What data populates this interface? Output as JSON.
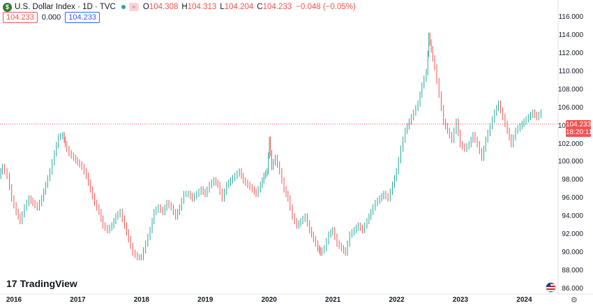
{
  "header": {
    "symbol_badge": "$",
    "title": "U.S. Dollar Index · 1D · TVC",
    "flag_badge": "≈",
    "ohlc": [
      {
        "label": "O",
        "value": "104.308"
      },
      {
        "label": "H",
        "value": "104.313"
      },
      {
        "label": "L",
        "value": "104.204"
      },
      {
        "label": "C",
        "value": "104.233"
      }
    ],
    "change": "−0.048 (−0.05%)"
  },
  "indicator": {
    "value1": "104.233",
    "value2": "0.000",
    "value3": "104.233"
  },
  "last_price": {
    "value": "104.233",
    "countdown": "18:20:11"
  },
  "branding": {
    "logo_mark": "17",
    "logo_text": "TradingView"
  },
  "colors": {
    "up": "#26a69a",
    "down": "#ef5350",
    "accent": "#2962ff"
  },
  "chart_data": {
    "type": "line",
    "title": "U.S. Dollar Index · 1D · TVC",
    "xlabel": "",
    "ylabel": "",
    "grid": false,
    "xlim": [
      2016.0,
      2024.75
    ],
    "ylim": [
      85.5,
      117.5
    ],
    "x_ticks": [
      "2016",
      "2017",
      "2018",
      "2019",
      "2020",
      "2021",
      "2022",
      "2023",
      "2024"
    ],
    "y_ticks": [
      "86.000",
      "88.000",
      "90.000",
      "92.000",
      "94.000",
      "96.000",
      "98.000",
      "100.000",
      "102.000",
      "104.000",
      "106.000",
      "108.000",
      "110.000",
      "112.000",
      "114.000",
      "116.000"
    ],
    "last_value": 104.233,
    "series": [
      {
        "x": [
          2016.0,
          2016.05,
          2016.13,
          2016.2,
          2016.27,
          2016.33,
          2016.4,
          2016.47,
          2016.53,
          2016.6,
          2016.67,
          2016.73,
          2016.8,
          2016.87,
          2016.93,
          2017.0,
          2017.03,
          2017.1,
          2017.17,
          2017.23,
          2017.3,
          2017.37,
          2017.43,
          2017.5,
          2017.57,
          2017.63,
          2017.7,
          2017.77,
          2017.83,
          2017.9,
          2017.97,
          2018.03,
          2018.1,
          2018.17,
          2018.23,
          2018.3,
          2018.37,
          2018.43,
          2018.5,
          2018.57,
          2018.63,
          2018.7,
          2018.77,
          2018.83,
          2018.9,
          2018.97,
          2019.03,
          2019.1,
          2019.17,
          2019.23,
          2019.3,
          2019.37,
          2019.43,
          2019.5,
          2019.57,
          2019.63,
          2019.7,
          2019.77,
          2019.83,
          2019.9,
          2019.97,
          2020.03,
          2020.1,
          2020.15,
          2020.2,
          2020.23,
          2020.27,
          2020.33,
          2020.4,
          2020.47,
          2020.53,
          2020.6,
          2020.67,
          2020.73,
          2020.8,
          2020.87,
          2020.93,
          2021.0,
          2021.03,
          2021.1,
          2021.17,
          2021.23,
          2021.3,
          2021.37,
          2021.43,
          2021.5,
          2021.57,
          2021.63,
          2021.7,
          2021.77,
          2021.83,
          2021.9,
          2021.97,
          2022.03,
          2022.1,
          2022.17,
          2022.23,
          2022.3,
          2022.37,
          2022.43,
          2022.5,
          2022.57,
          2022.63,
          2022.7,
          2022.73,
          2022.77,
          2022.83,
          2022.9,
          2022.97,
          2023.03,
          2023.1,
          2023.17,
          2023.23,
          2023.3,
          2023.37,
          2023.43,
          2023.5,
          2023.57,
          2023.63,
          2023.7,
          2023.77,
          2023.83,
          2023.9,
          2023.97,
          2024.03,
          2024.1,
          2024.17,
          2024.23,
          2024.3,
          2024.37,
          2024.43,
          2024.5
        ],
        "y": [
          98.5,
          99.5,
          98.5,
          96.0,
          94.5,
          93.5,
          95.0,
          96.0,
          95.5,
          95.0,
          96.0,
          97.5,
          99.0,
          101.0,
          102.8,
          103.0,
          102.0,
          101.0,
          100.5,
          100.0,
          99.5,
          98.5,
          97.0,
          95.5,
          94.5,
          93.0,
          92.5,
          93.0,
          94.0,
          94.5,
          93.0,
          91.5,
          90.0,
          89.5,
          89.5,
          91.0,
          92.5,
          94.5,
          95.0,
          94.5,
          95.5,
          95.0,
          94.0,
          95.0,
          96.5,
          96.5,
          96.0,
          96.5,
          97.0,
          96.5,
          97.5,
          98.0,
          97.5,
          96.0,
          97.5,
          98.0,
          98.5,
          99.0,
          98.0,
          97.5,
          97.0,
          96.5,
          97.5,
          98.5,
          99.0,
          102.5,
          99.5,
          100.5,
          99.0,
          97.0,
          96.0,
          94.0,
          93.0,
          93.5,
          94.0,
          92.5,
          91.5,
          90.5,
          90.0,
          90.5,
          92.0,
          92.5,
          91.0,
          90.5,
          90.0,
          92.0,
          92.5,
          93.0,
          92.5,
          93.5,
          94.5,
          95.5,
          96.0,
          96.5,
          96.0,
          97.5,
          99.0,
          101.5,
          103.5,
          104.5,
          105.5,
          106.5,
          108.5,
          110.0,
          114.0,
          112.5,
          110.5,
          107.5,
          104.5,
          103.5,
          102.5,
          104.5,
          102.0,
          101.5,
          102.0,
          103.0,
          102.0,
          100.5,
          102.5,
          104.0,
          105.5,
          106.5,
          105.0,
          103.5,
          102.0,
          103.5,
          104.0,
          104.5,
          105.0,
          105.5,
          105.0,
          105.5
        ]
      }
    ]
  }
}
